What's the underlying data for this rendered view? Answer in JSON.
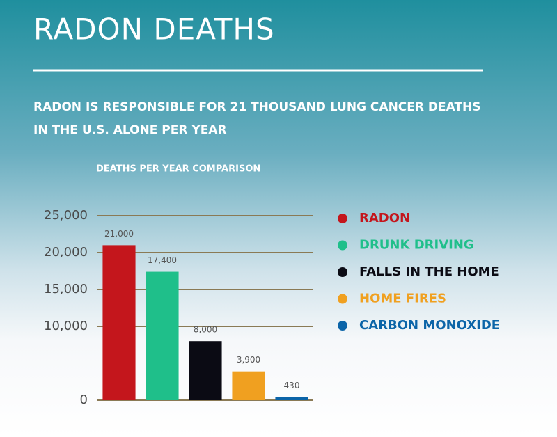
{
  "header": {
    "title": "RADON DEATHS",
    "subtitle": [
      "RADON IS RESPONSIBLE FOR 21 THOUSAND LUNG CANCER DEATHS",
      "IN THE U.S. ALONE PER YEAR"
    ]
  },
  "chart_data": {
    "type": "bar",
    "title": "DEATHS PER YEAR COMPARISON",
    "categories": [
      "RADON",
      "DRUNK DRIVING",
      "FALLS IN THE HOME",
      "HOME FIRES",
      "CARBON MONOXIDE"
    ],
    "values": [
      21000,
      17400,
      8000,
      3900,
      430
    ],
    "value_labels": [
      "21,000",
      "17,400",
      "8,000",
      "3,900",
      "430"
    ],
    "colors": [
      "#c4161c",
      "#1fbf8a",
      "#0b0b14",
      "#f0a020",
      "#0b64a8"
    ],
    "ylim": [
      0,
      25000
    ],
    "yticks": [
      0,
      {
        "value": 10000,
        "label": "10,000"
      },
      {
        "value": 15000,
        "label": "15,000"
      },
      {
        "value": 20000,
        "label": "20,000"
      },
      {
        "value": 25000,
        "label": "25,000"
      }
    ],
    "grid": true
  }
}
